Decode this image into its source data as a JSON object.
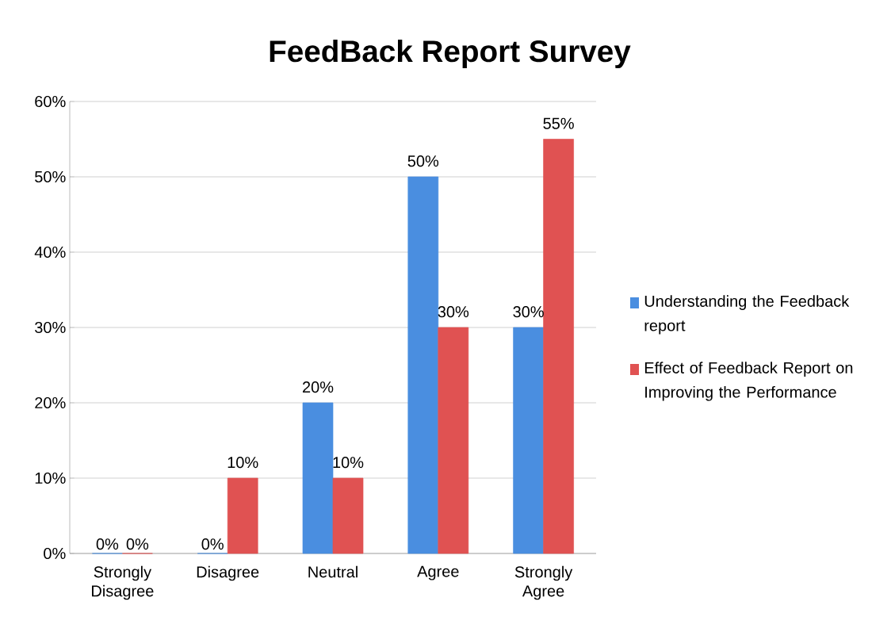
{
  "chart_data": {
    "type": "bar",
    "title": "FeedBack Report Survey",
    "categories": [
      "Strongly Disagree",
      "Disagree",
      "Neutral",
      "Agree",
      "Strongly Agree"
    ],
    "series": [
      {
        "name": "Understanding the Feedback report",
        "color": "#4a8ee0",
        "values": [
          0,
          0,
          20,
          50,
          30
        ],
        "value_labels": [
          "0%",
          "0%",
          "20%",
          "50%",
          "30%"
        ]
      },
      {
        "name": "Effect of Feedback Report on Improving the Performance",
        "color": "#e05252",
        "values": [
          0,
          10,
          10,
          30,
          55
        ],
        "value_labels": [
          "0%",
          "10%",
          "10%",
          "30%",
          "55%"
        ]
      }
    ],
    "ylim": [
      0,
      60
    ],
    "yticks": [
      {
        "value": 0,
        "label": "0%"
      },
      {
        "value": 10,
        "label": "10%"
      },
      {
        "value": 20,
        "label": "20%"
      },
      {
        "value": 30,
        "label": "30%"
      },
      {
        "value": 40,
        "label": "40%"
      },
      {
        "value": 50,
        "label": "50%"
      },
      {
        "value": 60,
        "label": "60%"
      }
    ],
    "grid": "y",
    "legend": "right"
  }
}
